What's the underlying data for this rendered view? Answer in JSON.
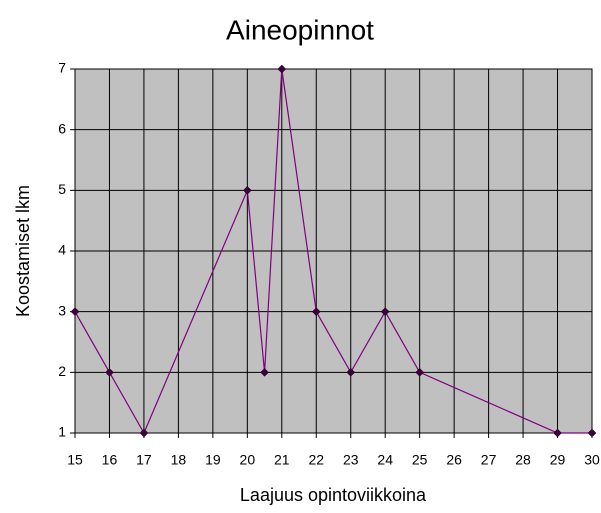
{
  "chart_data": {
    "type": "line",
    "title": "Aineopinnot",
    "x_label": "Laajuus opintoviikkoina",
    "y_label": "Koostamiset lkm",
    "x": [
      15,
      16,
      17,
      20,
      20.5,
      21,
      22,
      23,
      24,
      25,
      29,
      30
    ],
    "series": [
      {
        "color": "#800080",
        "values": [
          3,
          2,
          1,
          5,
          2,
          7,
          3,
          2,
          3,
          2,
          1,
          1
        ]
      }
    ],
    "xlim": [
      15,
      30
    ],
    "xticks": [
      15,
      16,
      17,
      18,
      19,
      20,
      21,
      22,
      23,
      24,
      25,
      26,
      27,
      28,
      29,
      30
    ],
    "ylim": [
      1,
      7
    ],
    "yticks": [
      1,
      2,
      3,
      4,
      5,
      6,
      7
    ],
    "grid": true
  }
}
